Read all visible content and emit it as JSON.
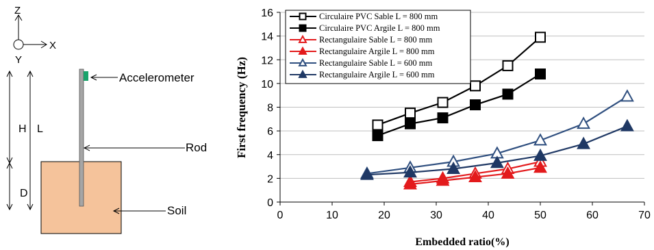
{
  "diagram": {
    "axes": {
      "z": "Z",
      "x": "X",
      "y": "Y"
    },
    "labels": {
      "accelerometer": "Accelerometer",
      "rod": "Rod",
      "soil": "Soil",
      "h": "H",
      "l": "L",
      "d": "D"
    },
    "colors": {
      "soil": "#f5c39b",
      "accelerometer": "#1aa36b",
      "rod": "#a6a6a6"
    }
  },
  "chart_data": {
    "type": "line",
    "title": "",
    "xlabel": "Embedded ratio(%)",
    "ylabel": "First frequency (Hz)",
    "xlim": [
      0,
      70
    ],
    "ylim": [
      0,
      16
    ],
    "xticks": [
      0,
      10,
      20,
      30,
      40,
      50,
      60,
      70
    ],
    "yticks": [
      0,
      2,
      4,
      6,
      8,
      10,
      12,
      14,
      16
    ],
    "grid": "horizontal",
    "legend_position": "top-left",
    "series": [
      {
        "name": "Circulaire PVC Sable L = 800 mm",
        "color": "#000000",
        "marker": "square-open",
        "x": [
          18.75,
          25,
          31.25,
          37.5,
          43.75,
          50
        ],
        "y": [
          6.5,
          7.5,
          8.4,
          9.8,
          11.5,
          13.9
        ]
      },
      {
        "name": "Circulaire PVC Argile L = 800 mm",
        "color": "#000000",
        "marker": "square-filled",
        "x": [
          18.75,
          25,
          31.25,
          37.5,
          43.75,
          50
        ],
        "y": [
          5.6,
          6.6,
          7.1,
          8.2,
          9.1,
          10.8
        ]
      },
      {
        "name": "Rectangulaire Sable L = 800 mm",
        "color": "#e31a1c",
        "marker": "triangle-open",
        "x": [
          25,
          31.25,
          37.5,
          43.75,
          50
        ],
        "y": [
          1.7,
          2.0,
          2.4,
          2.8,
          3.4
        ]
      },
      {
        "name": "Rectangulaire Argile L = 800 mm",
        "color": "#e31a1c",
        "marker": "triangle-filled",
        "x": [
          25,
          31.25,
          37.5,
          43.75,
          50
        ],
        "y": [
          1.5,
          1.8,
          2.1,
          2.4,
          2.9
        ]
      },
      {
        "name": "Rectangulaire Sable L = 600 mm",
        "color": "#2f4f7f",
        "marker": "triangle-open",
        "x": [
          16.7,
          25,
          33.3,
          41.7,
          50,
          58.3,
          66.7
        ],
        "y": [
          2.4,
          2.9,
          3.4,
          4.1,
          5.2,
          6.6,
          8.9
        ]
      },
      {
        "name": "Rectangulaire Argile L = 600 mm",
        "color": "#1f3864",
        "marker": "triangle-filled",
        "x": [
          16.7,
          25,
          33.3,
          41.7,
          50,
          58.3,
          66.7
        ],
        "y": [
          2.3,
          2.5,
          2.8,
          3.3,
          3.9,
          4.9,
          6.4
        ]
      }
    ]
  }
}
